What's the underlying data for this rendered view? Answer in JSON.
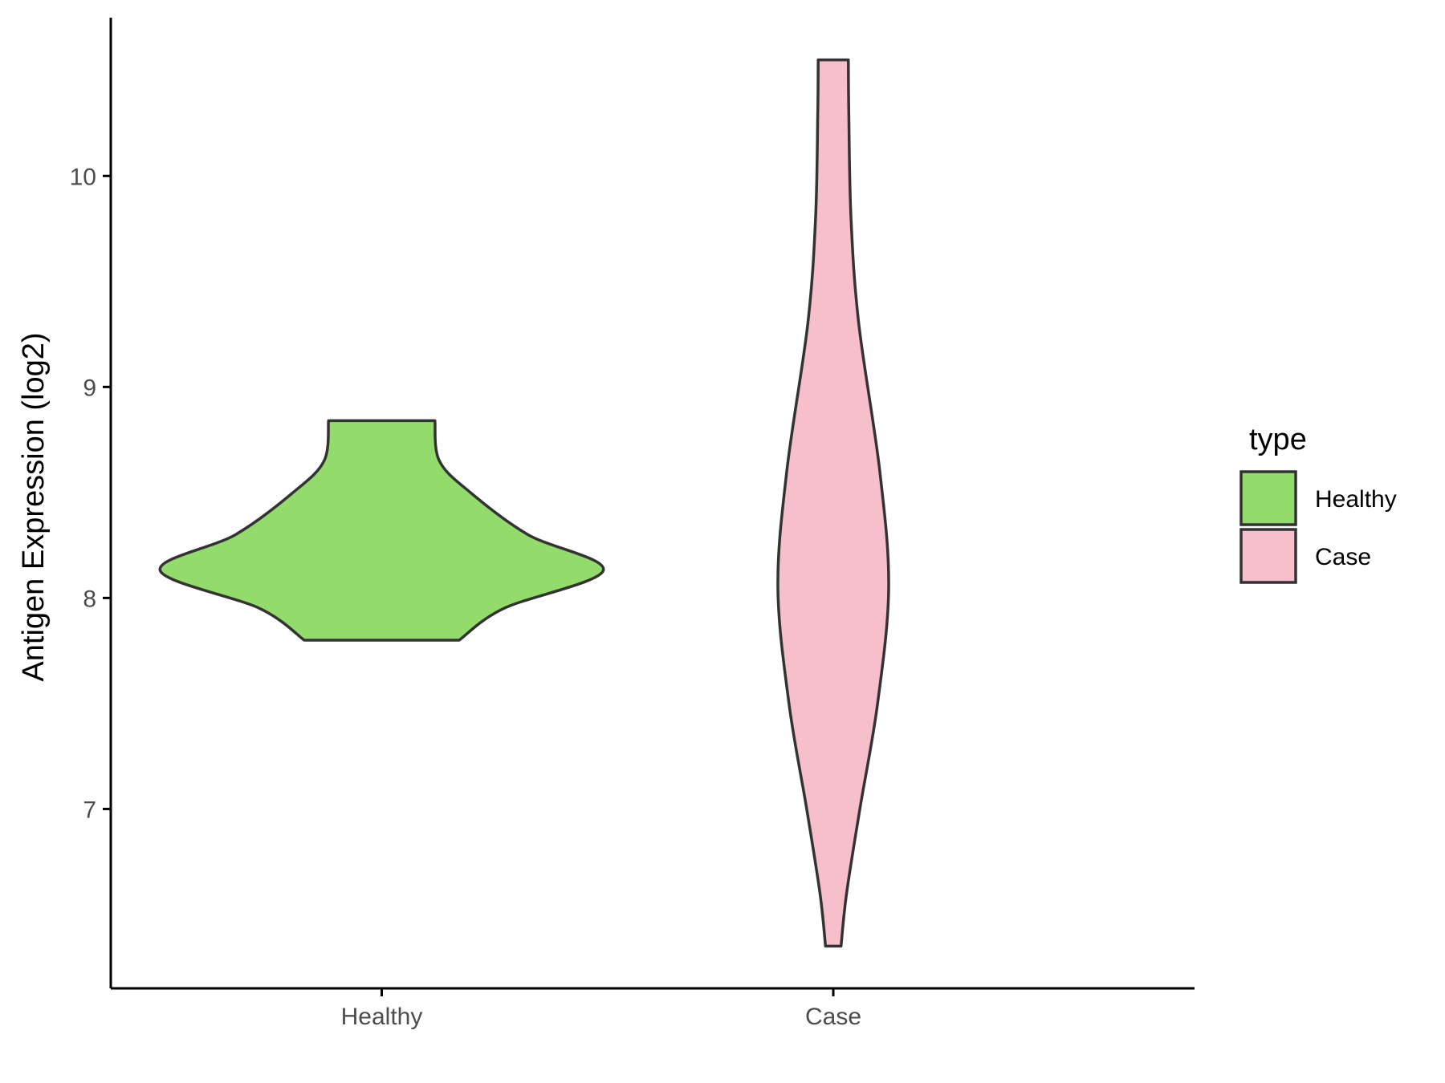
{
  "chart_data": {
    "type": "violin",
    "xlabel": "",
    "ylabel": "Antigen Expression (log2)",
    "categories": [
      "Healthy",
      "Case"
    ],
    "ylim": [
      6.15,
      10.75
    ],
    "yticks": [
      7,
      8,
      9,
      10
    ],
    "grid": false,
    "legend": {
      "title": "type",
      "position": "right",
      "entries": [
        {
          "label": "Healthy",
          "color": "#93DC6B"
        },
        {
          "label": "Case",
          "color": "#F7BFCB"
        }
      ]
    },
    "series": [
      {
        "category": "Healthy",
        "color": "#93DC6B",
        "min": 7.8,
        "max": 8.84,
        "density_profile": [
          {
            "y": 7.8,
            "width": 0.35
          },
          {
            "y": 7.95,
            "width": 0.55
          },
          {
            "y": 8.13,
            "width": 1.0
          },
          {
            "y": 8.3,
            "width": 0.66
          },
          {
            "y": 8.5,
            "width": 0.4
          },
          {
            "y": 8.65,
            "width": 0.26
          },
          {
            "y": 8.84,
            "width": 0.24
          }
        ]
      },
      {
        "category": "Case",
        "color": "#F7BFCB",
        "min": 6.35,
        "max": 10.55,
        "density_profile": [
          {
            "y": 6.35,
            "width": 0.035
          },
          {
            "y": 6.6,
            "width": 0.06
          },
          {
            "y": 7.0,
            "width": 0.12
          },
          {
            "y": 7.5,
            "width": 0.2
          },
          {
            "y": 8.05,
            "width": 0.25
          },
          {
            "y": 8.6,
            "width": 0.21
          },
          {
            "y": 9.3,
            "width": 0.115
          },
          {
            "y": 9.8,
            "width": 0.08
          },
          {
            "y": 10.3,
            "width": 0.07
          },
          {
            "y": 10.55,
            "width": 0.068
          }
        ]
      }
    ]
  }
}
